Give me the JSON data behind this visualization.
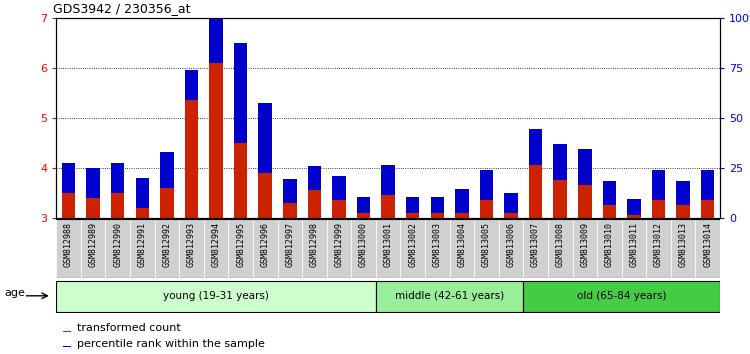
{
  "title": "GDS3942 / 230356_at",
  "samples": [
    "GSM812988",
    "GSM812989",
    "GSM812990",
    "GSM812991",
    "GSM812992",
    "GSM812993",
    "GSM812994",
    "GSM812995",
    "GSM812996",
    "GSM812997",
    "GSM812998",
    "GSM812999",
    "GSM813000",
    "GSM813001",
    "GSM813002",
    "GSM813003",
    "GSM813004",
    "GSM813005",
    "GSM813006",
    "GSM813007",
    "GSM813008",
    "GSM813009",
    "GSM813010",
    "GSM813011",
    "GSM813012",
    "GSM813013",
    "GSM813014"
  ],
  "red_values": [
    3.5,
    3.4,
    3.5,
    3.2,
    3.6,
    5.35,
    6.1,
    4.5,
    3.9,
    3.3,
    3.55,
    3.35,
    3.1,
    3.45,
    3.1,
    3.1,
    3.1,
    3.35,
    3.1,
    4.05,
    3.75,
    3.65,
    3.25,
    3.05,
    3.35,
    3.25,
    3.35
  ],
  "blue_percentiles": [
    15,
    15,
    15,
    15,
    18,
    15,
    68,
    50,
    35,
    12,
    12,
    12,
    8,
    15,
    8,
    8,
    12,
    15,
    10,
    18,
    18,
    18,
    12,
    8,
    15,
    12,
    15
  ],
  "red_color": "#CC2200",
  "blue_color": "#0000CC",
  "ylim_left": [
    3.0,
    7.0
  ],
  "ylim_right": [
    0,
    100
  ],
  "yticks_left": [
    3,
    4,
    5,
    6,
    7
  ],
  "yticks_right": [
    0,
    25,
    50,
    75,
    100
  ],
  "ytick_labels_right": [
    "0",
    "25",
    "50",
    "75",
    "100%"
  ],
  "groups": [
    {
      "label": "young (19-31 years)",
      "start": 0,
      "end": 13,
      "color": "#ccffcc"
    },
    {
      "label": "middle (42-61 years)",
      "start": 13,
      "end": 19,
      "color": "#99ee99"
    },
    {
      "label": "old (65-84 years)",
      "start": 19,
      "end": 27,
      "color": "#44cc44"
    }
  ],
  "age_label": "age",
  "legend_red": "transformed count",
  "legend_blue": "percentile rank within the sample",
  "bar_width": 0.55,
  "plot_bg": "#ffffff",
  "fig_bg": "#ffffff",
  "tick_bg": "#d0d0d0"
}
